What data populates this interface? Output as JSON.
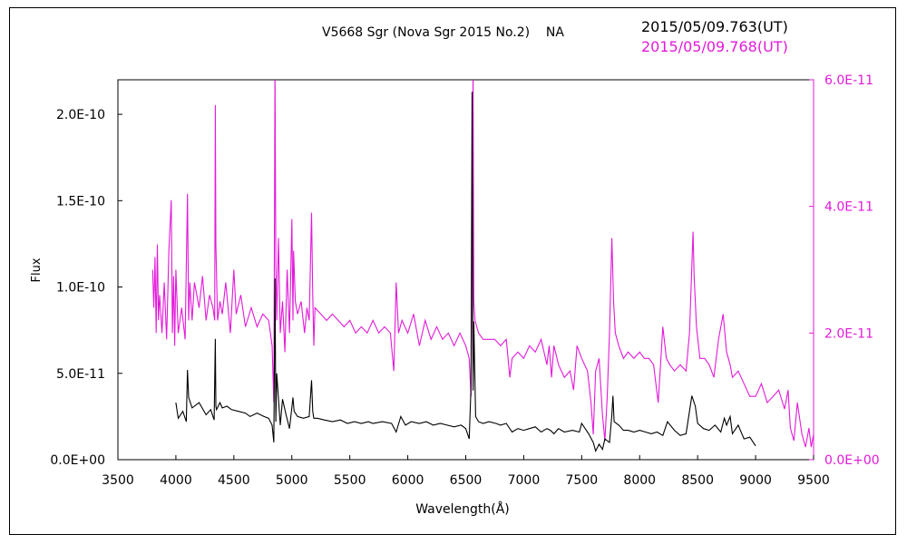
{
  "header": {
    "title": "V5668 Sgr (Nova Sgr 2015 No.2)    NA",
    "date_black": "2015/05/09.763(UT)",
    "date_magenta": "2015/05/09.768(UT)"
  },
  "colors": {
    "black_series": "#000000",
    "magenta_series": "#e21ad9"
  },
  "chart_data": {
    "type": "line",
    "title": "V5668 Sgr (Nova Sgr 2015 No.2)    NA",
    "xlabel": "Wavelength(Å)",
    "ylabel": "Flux",
    "xlim": [
      3500,
      9500
    ],
    "ylim_left": [
      0,
      2.2e-10
    ],
    "ylim_right": [
      0,
      6e-11
    ],
    "x_ticks": [
      "3500",
      "4000",
      "4500",
      "5000",
      "5500",
      "6000",
      "6500",
      "7000",
      "7500",
      "8000",
      "8500",
      "9000",
      "9500"
    ],
    "y_ticks_left": [
      {
        "value": 0,
        "label": "0.0E+00"
      },
      {
        "value": 5e-11,
        "label": "5.0E-11"
      },
      {
        "value": 1e-10,
        "label": "1.0E-10"
      },
      {
        "value": 1.5e-10,
        "label": "1.5E-10"
      },
      {
        "value": 2e-10,
        "label": "2.0E-10"
      }
    ],
    "y_ticks_right": [
      {
        "value": 0,
        "label": "0.0E+00"
      },
      {
        "value": 2e-11,
        "label": "2.0E-11"
      },
      {
        "value": 4e-11,
        "label": "4.0E-11"
      },
      {
        "value": 6e-11,
        "label": "6.0E-11"
      }
    ],
    "grid": false,
    "series": [
      {
        "name": "2015/05/09.763(UT)",
        "axis": "left",
        "color": "#000000",
        "x": [
          4000,
          4020,
          4060,
          4090,
          4100,
          4110,
          4140,
          4200,
          4260,
          4300,
          4330,
          4340,
          4345,
          4350,
          4380,
          4400,
          4440,
          4480,
          4540,
          4600,
          4640,
          4700,
          4760,
          4800,
          4830,
          4845,
          4855,
          4862,
          4870,
          4900,
          4920,
          4950,
          4980,
          5010,
          5020,
          5050,
          5100,
          5150,
          5170,
          5180,
          5190,
          5220,
          5280,
          5350,
          5420,
          5480,
          5540,
          5600,
          5660,
          5700,
          5780,
          5860,
          5900,
          5940,
          5980,
          6030,
          6100,
          6160,
          6220,
          6280,
          6340,
          6400,
          6460,
          6500,
          6530,
          6545,
          6555,
          6563,
          6570,
          6585,
          6610,
          6650,
          6700,
          6760,
          6800,
          6850,
          6900,
          6950,
          7000,
          7050,
          7100,
          7150,
          7200,
          7230,
          7260,
          7300,
          7350,
          7420,
          7480,
          7500,
          7560,
          7600,
          7620,
          7650,
          7680,
          7700,
          7740,
          7760,
          7770,
          7780,
          7820,
          7860,
          7900,
          7950,
          8000,
          8050,
          8100,
          8150,
          8200,
          8240,
          8300,
          8350,
          8400,
          8450,
          8480,
          8500,
          8550,
          8600,
          8650,
          8700,
          8730,
          8750,
          8780,
          8800,
          8850,
          8900,
          8950,
          9000
        ],
        "y": [
          3.3e-11,
          2.4e-11,
          2.8e-11,
          2.2e-11,
          5.2e-11,
          3.6e-11,
          3e-11,
          3.3e-11,
          2.6e-11,
          2.9e-11,
          2.3e-11,
          7e-11,
          3.1e-11,
          2.9e-11,
          3.3e-11,
          3e-11,
          3.1e-11,
          2.9e-11,
          2.8e-11,
          2.7e-11,
          2.5e-11,
          2.7e-11,
          2.5e-11,
          2.4e-11,
          2e-11,
          1e-11,
          1.05e-10,
          2.2e-11,
          5e-11,
          2e-11,
          3.5e-11,
          2.6e-11,
          1.8e-11,
          3.6e-11,
          2.8e-11,
          2.5e-11,
          2.4e-11,
          2.5e-11,
          4.6e-11,
          2.8e-11,
          2.4e-11,
          2.4e-11,
          2.3e-11,
          2.2e-11,
          2.3e-11,
          2.1e-11,
          2.2e-11,
          2.1e-11,
          2.2e-11,
          2.1e-11,
          2.2e-11,
          2.1e-11,
          1.6e-11,
          2.5e-11,
          2e-11,
          2.2e-11,
          2.1e-11,
          2.2e-11,
          2e-11,
          2.1e-11,
          2e-11,
          1.9e-11,
          2e-11,
          1.8e-11,
          1.2e-11,
          4.2e-11,
          2.13e-10,
          4e-11,
          8e-11,
          2.5e-11,
          2.2e-11,
          2.1e-11,
          2.2e-11,
          2.1e-11,
          2e-11,
          2.1e-11,
          1.6e-11,
          1.8e-11,
          1.7e-11,
          1.8e-11,
          1.9e-11,
          1.6e-11,
          1.8e-11,
          1.7e-11,
          1.5e-11,
          1.8e-11,
          1.6e-11,
          1.7e-11,
          1.6e-11,
          2.1e-11,
          1.5e-11,
          1e-11,
          5e-12,
          9e-12,
          6e-12,
          1.2e-11,
          1e-11,
          2.6e-11,
          3.7e-11,
          2.2e-11,
          2e-11,
          1.7e-11,
          1.7e-11,
          1.6e-11,
          1.7e-11,
          1.6e-11,
          1.5e-11,
          1.6e-11,
          1.4e-11,
          2.2e-11,
          1.7e-11,
          1.4e-11,
          1.5e-11,
          3.7e-11,
          3.1e-11,
          2.1e-11,
          1.8e-11,
          1.7e-11,
          2e-11,
          1.6e-11,
          2.4e-11,
          2e-11,
          2.5e-11,
          1.5e-11,
          2e-11,
          1.2e-11,
          1.3e-11,
          8e-12
        ]
      },
      {
        "name": "2015/05/09.768(UT)",
        "axis": "right",
        "color": "#e21ad9",
        "x": [
          3800,
          3810,
          3820,
          3830,
          3840,
          3850,
          3860,
          3880,
          3900,
          3920,
          3940,
          3960,
          3970,
          3980,
          3990,
          4000,
          4020,
          4050,
          4080,
          4100,
          4110,
          4120,
          4140,
          4160,
          4200,
          4230,
          4260,
          4290,
          4320,
          4335,
          4340,
          4345,
          4360,
          4380,
          4400,
          4430,
          4470,
          4500,
          4520,
          4560,
          4600,
          4650,
          4700,
          4750,
          4800,
          4830,
          4845,
          4855,
          4862,
          4870,
          4885,
          4900,
          4920,
          4940,
          4960,
          4980,
          5000,
          5010,
          5015,
          5030,
          5050,
          5080,
          5110,
          5130,
          5150,
          5170,
          5180,
          5190,
          5200,
          5250,
          5300,
          5350,
          5400,
          5450,
          5500,
          5550,
          5600,
          5650,
          5700,
          5750,
          5800,
          5850,
          5880,
          5900,
          5920,
          5950,
          6000,
          6050,
          6100,
          6150,
          6200,
          6250,
          6300,
          6350,
          6400,
          6450,
          6500,
          6530,
          6545,
          6555,
          6563,
          6570,
          6580,
          6610,
          6650,
          6700,
          6750,
          6800,
          6850,
          6880,
          6900,
          6950,
          7000,
          7050,
          7100,
          7150,
          7200,
          7220,
          7240,
          7260,
          7300,
          7350,
          7400,
          7430,
          7460,
          7500,
          7550,
          7580,
          7600,
          7620,
          7650,
          7680,
          7700,
          7720,
          7740,
          7760,
          7775,
          7790,
          7820,
          7860,
          7900,
          7950,
          8000,
          8040,
          8080,
          8120,
          8160,
          8200,
          8230,
          8260,
          8300,
          8350,
          8400,
          8430,
          8460,
          8470,
          8490,
          8520,
          8560,
          8600,
          8640,
          8680,
          8720,
          8750,
          8780,
          8800,
          8850,
          8900,
          8950,
          9000,
          9050,
          9100,
          9150,
          9200,
          9250,
          9280,
          9300,
          9330,
          9360,
          9400,
          9430,
          9460,
          9480,
          9500
        ],
        "y": [
          3e-11,
          2.4e-11,
          3.2e-11,
          2e-11,
          3.4e-11,
          2.2e-11,
          2.6e-11,
          2e-11,
          2.8e-11,
          1.9e-11,
          3.3e-11,
          4.1e-11,
          2e-11,
          2.9e-11,
          1.8e-11,
          3e-11,
          2e-11,
          2.4e-11,
          1.9e-11,
          4.2e-11,
          2.2e-11,
          2.8e-11,
          2.2e-11,
          2.8e-11,
          2.4e-11,
          2.9e-11,
          2.2e-11,
          2.6e-11,
          2.4e-11,
          2.2e-11,
          5.6e-11,
          3.4e-11,
          2.2e-11,
          2.5e-11,
          2.3e-11,
          2.8e-11,
          2e-11,
          3e-11,
          2.3e-11,
          2.6e-11,
          2.1e-11,
          2.4e-11,
          2.1e-11,
          2.3e-11,
          2.2e-11,
          1.8e-11,
          9e-12,
          6.2e-11,
          3.1e-11,
          2.2e-11,
          3.5e-11,
          2e-11,
          2.5e-11,
          1.7e-11,
          3e-11,
          2e-11,
          3.8e-11,
          2.2e-11,
          3.3e-11,
          2.5e-11,
          2.3e-11,
          2.5e-11,
          2e-11,
          2.4e-11,
          2.2e-11,
          3.9e-11,
          2.6e-11,
          1.8e-11,
          2.4e-11,
          2.3e-11,
          2.2e-11,
          2.3e-11,
          2.2e-11,
          2.1e-11,
          2.2e-11,
          2e-11,
          2.1e-11,
          2e-11,
          2.2e-11,
          2e-11,
          2.1e-11,
          2e-11,
          1.4e-11,
          2.8e-11,
          2e-11,
          2.2e-11,
          2e-11,
          2.3e-11,
          1.8e-11,
          2.2e-11,
          1.9e-11,
          2.1e-11,
          1.9e-11,
          2e-11,
          1.8e-11,
          2e-11,
          1.8e-11,
          1.6e-11,
          1e-11,
          3e-11,
          6.2e-11,
          2.5e-11,
          2.2e-11,
          2e-11,
          1.9e-11,
          1.9e-11,
          1.9e-11,
          1.8e-11,
          1.9e-11,
          1.3e-11,
          1.6e-11,
          1.7e-11,
          1.6e-11,
          1.8e-11,
          1.7e-11,
          1.9e-11,
          1.5e-11,
          1.8e-11,
          1.3e-11,
          1.8e-11,
          1.5e-11,
          1.3e-11,
          1.4e-11,
          1.1e-11,
          1.8e-11,
          1.6e-11,
          1.4e-11,
          9e-12,
          4e-12,
          1.4e-11,
          1.6e-11,
          7e-12,
          3e-12,
          1e-11,
          2e-11,
          3.5e-11,
          2.5e-11,
          2e-11,
          1.8e-11,
          1.6e-11,
          1.7e-11,
          1.6e-11,
          1.7e-11,
          1.6e-11,
          1.6e-11,
          1.5e-11,
          9e-12,
          2.1e-11,
          1.6e-11,
          1.5e-11,
          1.4e-11,
          1.5e-11,
          1.4e-11,
          2e-11,
          3.6e-11,
          2.9e-11,
          2.1e-11,
          1.6e-11,
          1.6e-11,
          1.5e-11,
          1.3e-11,
          1.9e-11,
          2.3e-11,
          1.7e-11,
          1.5e-11,
          1.3e-11,
          1.4e-11,
          1.2e-11,
          1e-11,
          1e-11,
          1.2e-11,
          9e-12,
          1e-11,
          1.1e-11,
          8e-12,
          1.1e-11,
          5e-12,
          3e-12,
          9e-12,
          4e-12,
          2e-12,
          5e-12,
          2e-12,
          4e-12
        ]
      }
    ]
  }
}
